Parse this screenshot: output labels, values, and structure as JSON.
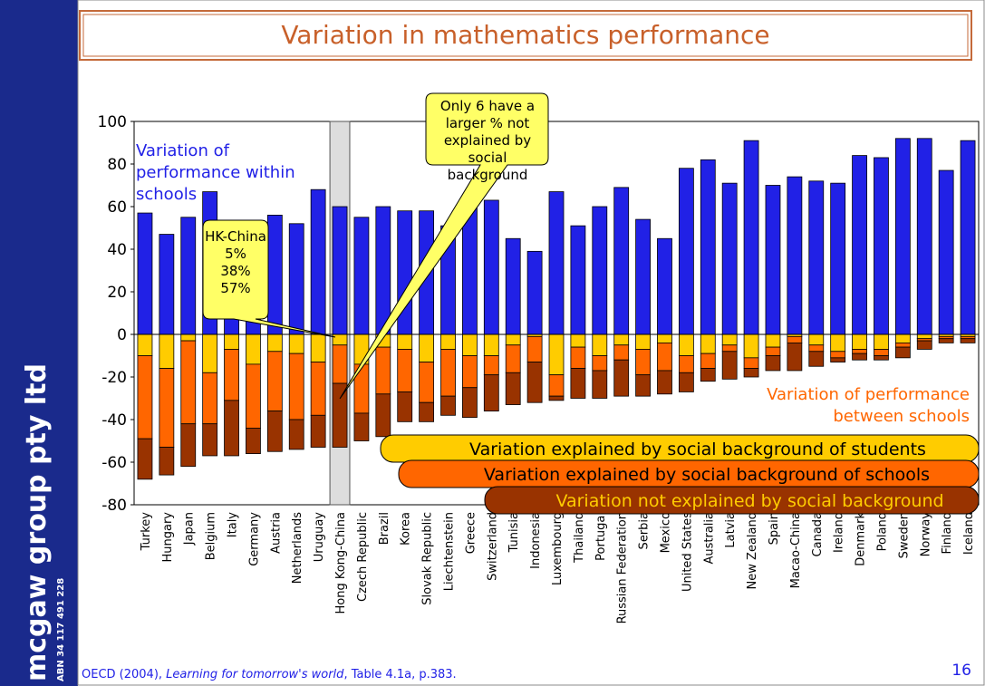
{
  "slide": {
    "title": "Variation in mathematics performance",
    "side_text": "mcgaw group pty ltd",
    "abn": "ABN 34 117 491 228",
    "footer": {
      "before": "OECD (2004), ",
      "italic": "Learning for tomorrow's world",
      "after": ", Table 4.1a, p.383."
    },
    "page_number": "16"
  },
  "chart_data": {
    "type": "bar",
    "stacked": true,
    "categories": [
      "Turkey",
      "Hungary",
      "Japan",
      "Belgium",
      "Italy",
      "Germany",
      "Austria",
      "Netherlands",
      "Uruguay",
      "Hong Kong-China",
      "Czech Republic",
      "Brazil",
      "Korea",
      "Slovak Republic",
      "Liechtenstein",
      "Greece",
      "Switzerland",
      "Tunisia",
      "Indonesia",
      "Luxembourg",
      "Thailand",
      "Portugal",
      "Russian Federation",
      "Serbia",
      "Mexico",
      "United States",
      "Australia",
      "Latvia",
      "New Zealand",
      "Spain",
      "Macao-China",
      "Canada",
      "Ireland",
      "Denmark",
      "Poland",
      "Sweden",
      "Norway",
      "Finland",
      "Iceland"
    ],
    "series": [
      {
        "name": "Variation of performance within schools",
        "color": "#2121e6",
        "values": [
          57,
          47,
          55,
          67,
          53,
          52,
          56,
          52,
          68,
          60,
          55,
          60,
          58,
          58,
          51,
          60,
          63,
          45,
          39,
          67,
          51,
          60,
          69,
          54,
          45,
          78,
          82,
          71,
          91,
          70,
          74,
          72,
          71,
          84,
          83,
          92,
          92,
          77,
          91
        ]
      },
      {
        "name": "Variation explained by social background of students",
        "color": "#ffcc00",
        "values": [
          -10,
          -16,
          -3,
          -18,
          -7,
          -14,
          -8,
          -9,
          -13,
          -5,
          -14,
          -6,
          -7,
          -13,
          -7,
          -10,
          -10,
          -5,
          -1,
          -19,
          -6,
          -10,
          -5,
          -7,
          -4,
          -10,
          -9,
          -5,
          -11,
          -6,
          -1,
          -5,
          -8,
          -7,
          -7,
          -4,
          -2,
          -1,
          -1
        ]
      },
      {
        "name": "Variation explained by social background of schools",
        "color": "#ff6600",
        "values": [
          -39,
          -37,
          -39,
          -24,
          -24,
          -30,
          -28,
          -31,
          -25,
          -18,
          -23,
          -22,
          -20,
          -19,
          -22,
          -15,
          -9,
          -13,
          -12,
          -10,
          -10,
          -7,
          -7,
          -12,
          -13,
          -8,
          -7,
          -3,
          -5,
          -4,
          -3,
          -3,
          -3,
          -2,
          -3,
          -2,
          -1,
          -1,
          -1
        ]
      },
      {
        "name": "Variation not explained by social background",
        "color": "#993300",
        "values": [
          -19,
          -13,
          -20,
          -15,
          -26,
          -12,
          -19,
          -14,
          -15,
          -30,
          -13,
          -20,
          -14,
          -9,
          -9,
          -14,
          -17,
          -15,
          -19,
          -2,
          -14,
          -13,
          -17,
          -10,
          -11,
          -9,
          -6,
          -13,
          -4,
          -7,
          -13,
          -7,
          -2,
          -3,
          -2,
          -5,
          -4,
          -2,
          -2
        ]
      }
    ],
    "between_label": "Variation of  performance between schools",
    "highlight": "Hong Kong-China",
    "annotations": {
      "hk": [
        "HK-China",
        "5%",
        "38%",
        "57%"
      ],
      "only6": "Only 6 have a larger % not explained by social background"
    },
    "ylim": [
      -80,
      100
    ],
    "yticks": [
      -80,
      -60,
      -40,
      -20,
      0,
      20,
      40,
      60,
      80,
      100
    ],
    "grid": false
  }
}
